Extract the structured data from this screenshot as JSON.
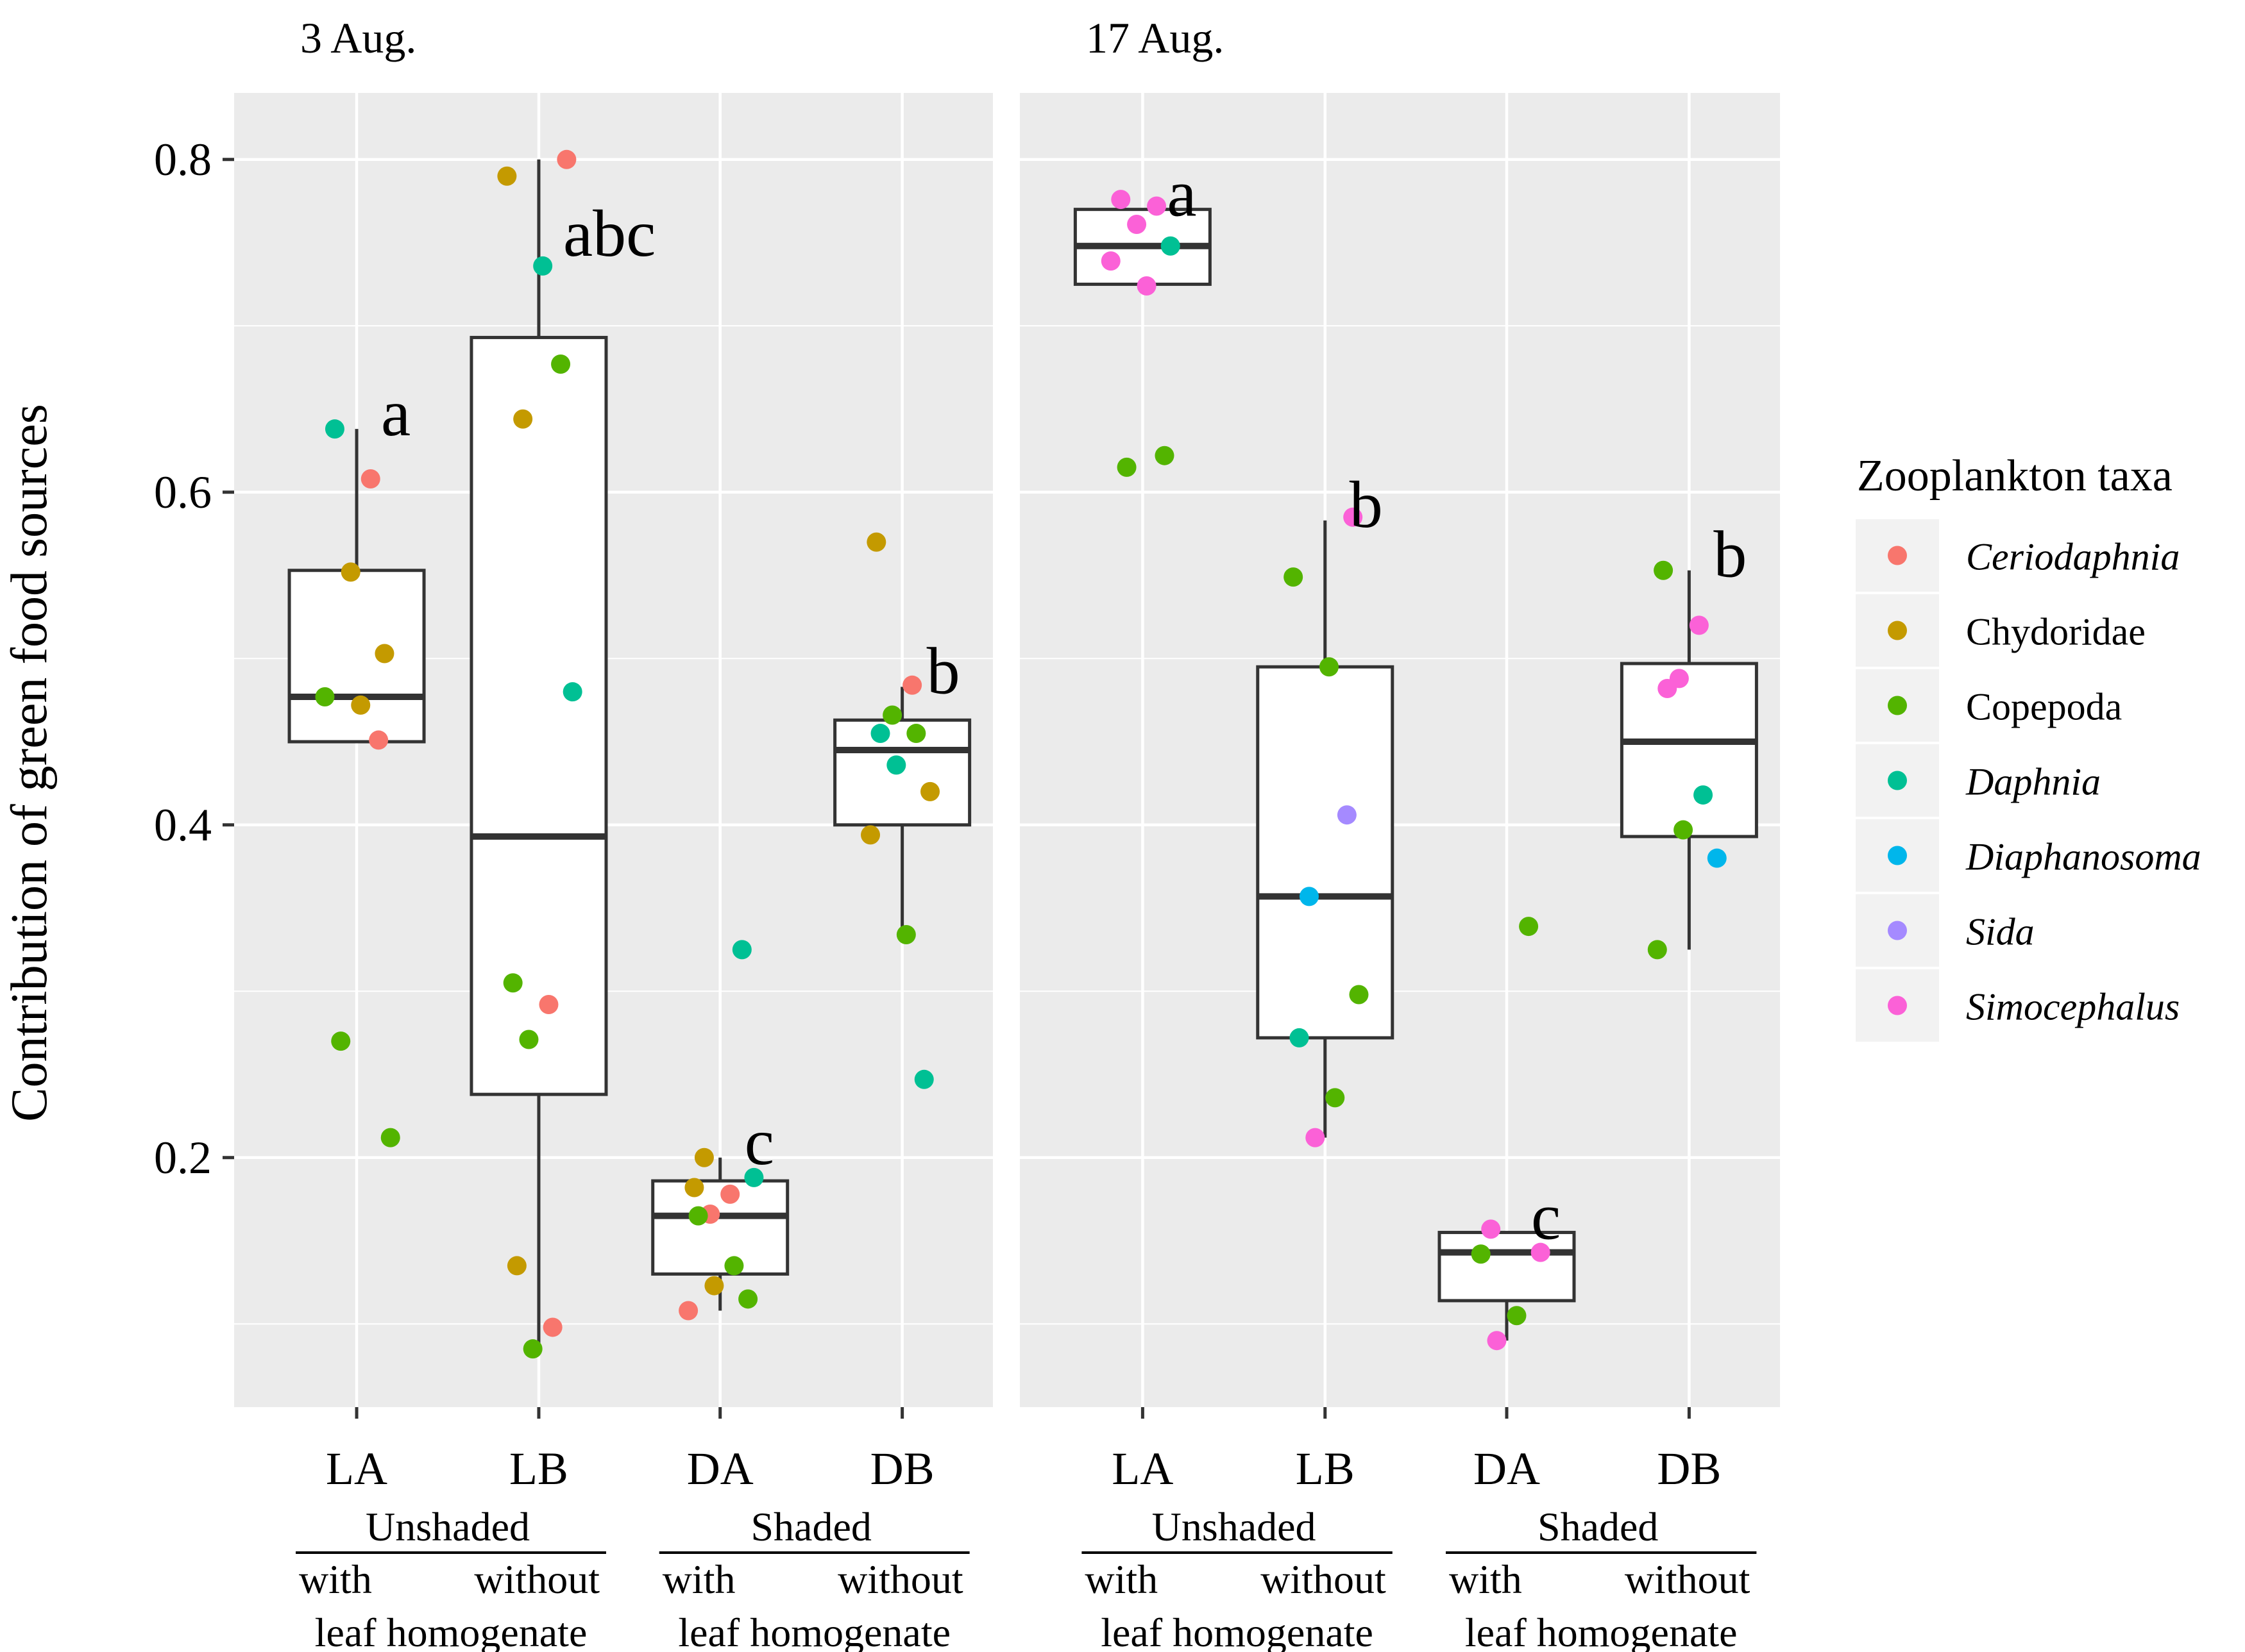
{
  "colors": {
    "panel_bg": "#EBEBEB",
    "grid": "#FFFFFF",
    "box_fill": "#FFFFFF",
    "box_line": "#333333",
    "legend_key_bg": "#F2F2F2"
  },
  "chart_data": {
    "type": "box",
    "ylabel": "Contribution of green food sources",
    "ylim": [
      0.05,
      0.84
    ],
    "yticks": [
      0.2,
      0.4,
      0.6,
      0.8
    ],
    "ytick_labels": [
      "0.2",
      "0.4",
      "0.6",
      "0.8"
    ],
    "categories": [
      "LA",
      "LB",
      "DA",
      "DB"
    ],
    "x_groups": [
      {
        "label": "Unshaded",
        "sub_left": "with",
        "sub_right": "without",
        "sub_bottom": "leaf homogenate"
      },
      {
        "label": "Shaded",
        "sub_left": "with",
        "sub_right": "without",
        "sub_bottom": "leaf homogenate"
      }
    ],
    "legend": {
      "title": "Zooplankton taxa",
      "placement": "right",
      "items": [
        {
          "name": "Ceriodaphnia",
          "color": "#F8766D",
          "italic": true
        },
        {
          "name": "Chydoridae",
          "color": "#C49A00",
          "italic": false
        },
        {
          "name": "Copepoda",
          "color": "#53B400",
          "italic": false
        },
        {
          "name": "Daphnia",
          "color": "#00C094",
          "italic": true
        },
        {
          "name": "Diaphanosoma",
          "color": "#00B6EB",
          "italic": true
        },
        {
          "name": "Sida",
          "color": "#A58AFF",
          "italic": true
        },
        {
          "name": "Simocephalus",
          "color": "#FB61D7",
          "italic": true
        }
      ]
    },
    "panels": [
      {
        "title": "3 Aug.",
        "boxes": [
          {
            "category": "LA",
            "q1": 0.45,
            "median": 0.477,
            "q3": 0.553,
            "whisker_low": 0.45,
            "whisker_high": 0.638,
            "letter": "a",
            "points": [
              {
                "taxon": "Daphnia",
                "y": 0.638
              },
              {
                "taxon": "Ceriodaphnia",
                "y": 0.608
              },
              {
                "taxon": "Chydoridae",
                "y": 0.552
              },
              {
                "taxon": "Chydoridae",
                "y": 0.503
              },
              {
                "taxon": "Copepoda",
                "y": 0.477
              },
              {
                "taxon": "Chydoridae",
                "y": 0.472
              },
              {
                "taxon": "Ceriodaphnia",
                "y": 0.451
              },
              {
                "taxon": "Copepoda",
                "y": 0.27
              },
              {
                "taxon": "Copepoda",
                "y": 0.212
              }
            ]
          },
          {
            "category": "LB",
            "q1": 0.238,
            "median": 0.393,
            "q3": 0.693,
            "whisker_low": 0.085,
            "whisker_high": 0.8,
            "letter": "abc",
            "points": [
              {
                "taxon": "Ceriodaphnia",
                "y": 0.8
              },
              {
                "taxon": "Chydoridae",
                "y": 0.79
              },
              {
                "taxon": "Daphnia",
                "y": 0.736
              },
              {
                "taxon": "Copepoda",
                "y": 0.677
              },
              {
                "taxon": "Chydoridae",
                "y": 0.644
              },
              {
                "taxon": "Daphnia",
                "y": 0.48
              },
              {
                "taxon": "Copepoda",
                "y": 0.305
              },
              {
                "taxon": "Ceriodaphnia",
                "y": 0.292
              },
              {
                "taxon": "Copepoda",
                "y": 0.271
              },
              {
                "taxon": "Chydoridae",
                "y": 0.135
              },
              {
                "taxon": "Ceriodaphnia",
                "y": 0.098
              },
              {
                "taxon": "Copepoda",
                "y": 0.085
              }
            ]
          },
          {
            "category": "DA",
            "q1": 0.13,
            "median": 0.165,
            "q3": 0.186,
            "whisker_low": 0.108,
            "whisker_high": 0.2,
            "letter": "c",
            "points": [
              {
                "taxon": "Daphnia",
                "y": 0.325
              },
              {
                "taxon": "Chydoridae",
                "y": 0.2
              },
              {
                "taxon": "Daphnia",
                "y": 0.188
              },
              {
                "taxon": "Chydoridae",
                "y": 0.182
              },
              {
                "taxon": "Ceriodaphnia",
                "y": 0.178
              },
              {
                "taxon": "Ceriodaphnia",
                "y": 0.166
              },
              {
                "taxon": "Copepoda",
                "y": 0.165
              },
              {
                "taxon": "Copepoda",
                "y": 0.135
              },
              {
                "taxon": "Chydoridae",
                "y": 0.123
              },
              {
                "taxon": "Copepoda",
                "y": 0.115
              },
              {
                "taxon": "Ceriodaphnia",
                "y": 0.108
              }
            ]
          },
          {
            "category": "DB",
            "q1": 0.4,
            "median": 0.445,
            "q3": 0.463,
            "whisker_low": 0.335,
            "whisker_high": 0.483,
            "letter": "b",
            "points": [
              {
                "taxon": "Chydoridae",
                "y": 0.57
              },
              {
                "taxon": "Ceriodaphnia",
                "y": 0.484
              },
              {
                "taxon": "Copepoda",
                "y": 0.466
              },
              {
                "taxon": "Daphnia",
                "y": 0.455
              },
              {
                "taxon": "Copepoda",
                "y": 0.455
              },
              {
                "taxon": "Daphnia",
                "y": 0.436
              },
              {
                "taxon": "Chydoridae",
                "y": 0.42
              },
              {
                "taxon": "Chydoridae",
                "y": 0.394
              },
              {
                "taxon": "Copepoda",
                "y": 0.334
              },
              {
                "taxon": "Daphnia",
                "y": 0.247
              }
            ]
          }
        ]
      },
      {
        "title": "17 Aug.",
        "boxes": [
          {
            "category": "LA",
            "q1": 0.725,
            "median": 0.748,
            "q3": 0.77,
            "whisker_low": 0.725,
            "whisker_high": 0.77,
            "letter": "a",
            "points": [
              {
                "taxon": "Simocephalus",
                "y": 0.776
              },
              {
                "taxon": "Simocephalus",
                "y": 0.772
              },
              {
                "taxon": "Simocephalus",
                "y": 0.761
              },
              {
                "taxon": "Daphnia",
                "y": 0.748
              },
              {
                "taxon": "Simocephalus",
                "y": 0.739
              },
              {
                "taxon": "Simocephalus",
                "y": 0.724
              },
              {
                "taxon": "Copepoda",
                "y": 0.622
              },
              {
                "taxon": "Copepoda",
                "y": 0.615
              }
            ]
          },
          {
            "category": "LB",
            "q1": 0.272,
            "median": 0.357,
            "q3": 0.495,
            "whisker_low": 0.212,
            "whisker_high": 0.583,
            "letter": "b",
            "points": [
              {
                "taxon": "Simocephalus",
                "y": 0.585
              },
              {
                "taxon": "Copepoda",
                "y": 0.549
              },
              {
                "taxon": "Copepoda",
                "y": 0.495
              },
              {
                "taxon": "Sida",
                "y": 0.406
              },
              {
                "taxon": "Diaphanosoma",
                "y": 0.357
              },
              {
                "taxon": "Copepoda",
                "y": 0.298
              },
              {
                "taxon": "Daphnia",
                "y": 0.272
              },
              {
                "taxon": "Copepoda",
                "y": 0.236
              },
              {
                "taxon": "Simocephalus",
                "y": 0.212
              }
            ]
          },
          {
            "category": "DA",
            "q1": 0.114,
            "median": 0.143,
            "q3": 0.155,
            "whisker_low": 0.09,
            "whisker_high": 0.155,
            "letter": "c",
            "points": [
              {
                "taxon": "Copepoda",
                "y": 0.339
              },
              {
                "taxon": "Simocephalus",
                "y": 0.157
              },
              {
                "taxon": "Simocephalus",
                "y": 0.143
              },
              {
                "taxon": "Copepoda",
                "y": 0.142
              },
              {
                "taxon": "Copepoda",
                "y": 0.105
              },
              {
                "taxon": "Simocephalus",
                "y": 0.09
              }
            ]
          },
          {
            "category": "DB",
            "q1": 0.393,
            "median": 0.45,
            "q3": 0.497,
            "whisker_low": 0.325,
            "whisker_high": 0.553,
            "letter": "b",
            "points": [
              {
                "taxon": "Copepoda",
                "y": 0.553
              },
              {
                "taxon": "Simocephalus",
                "y": 0.52
              },
              {
                "taxon": "Simocephalus",
                "y": 0.488
              },
              {
                "taxon": "Simocephalus",
                "y": 0.482
              },
              {
                "taxon": "Daphnia",
                "y": 0.418
              },
              {
                "taxon": "Copepoda",
                "y": 0.397
              },
              {
                "taxon": "Diaphanosoma",
                "y": 0.38
              },
              {
                "taxon": "Copepoda",
                "y": 0.325
              }
            ]
          }
        ]
      }
    ]
  }
}
